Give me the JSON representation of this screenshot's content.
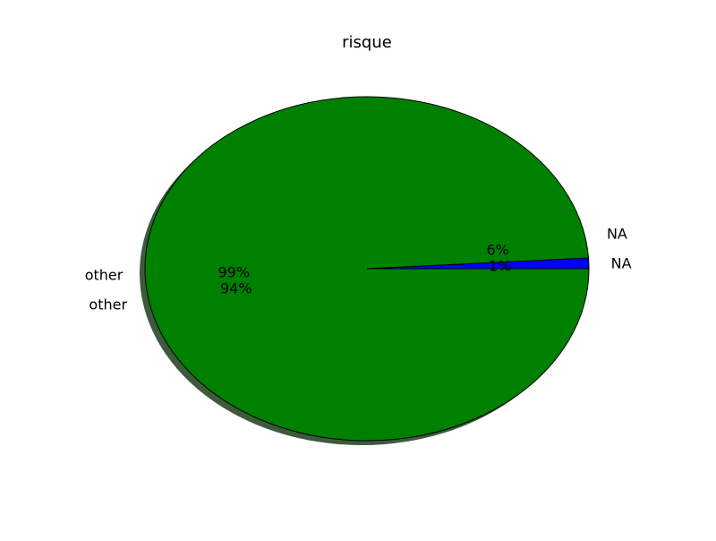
{
  "chart_data": {
    "type": "pie",
    "title": "risque",
    "series": [
      {
        "values": [
          1,
          99
        ],
        "categories": [
          "NA",
          "other"
        ],
        "pct_labels": [
          "1%",
          "99%"
        ],
        "colors": [
          "#0000ff",
          "#008000"
        ]
      },
      {
        "values": [
          6,
          94
        ],
        "categories": [
          "NA",
          "other"
        ],
        "pct_labels": [
          "6%",
          "94%"
        ],
        "colors": [
          "#0000ff",
          "#008000"
        ]
      }
    ],
    "shadow": true,
    "shadow_color": "#3d5a3d",
    "edge_color": "#000000",
    "legend": "none"
  }
}
